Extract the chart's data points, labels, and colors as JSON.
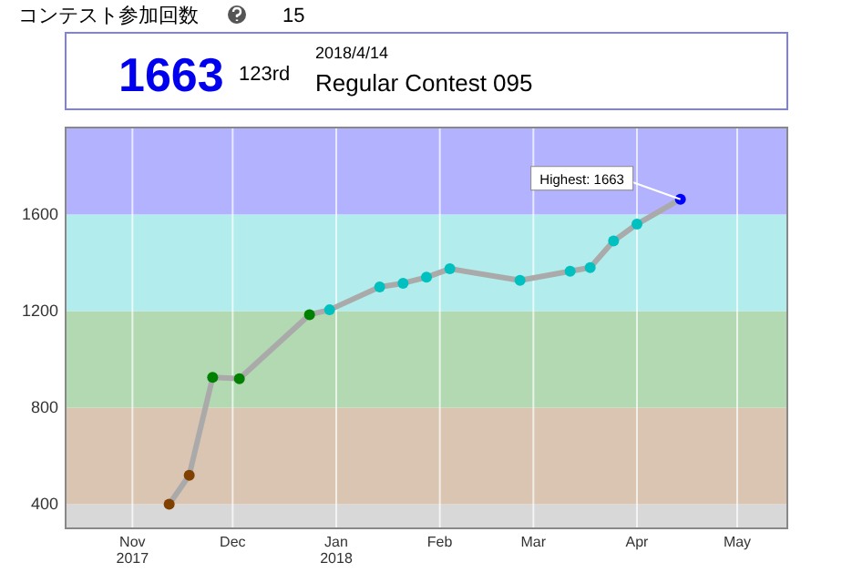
{
  "chart_data": {
    "type": "line",
    "annotations": [
      "コンテスト参加回数",
      "15",
      "1663",
      "123rd",
      "2018/4/14",
      "Regular Contest 095",
      {
        "text": "Highest: 1663",
        "x": "2018-04-14",
        "y": 1663
      }
    ],
    "x": [
      "2017-11-12",
      "2017-11-18",
      "2017-11-25",
      "2017-12-03",
      "2017-12-24",
      "2017-12-30",
      "2018-01-14",
      "2018-01-21",
      "2018-01-28",
      "2018-02-04",
      "2018-02-25",
      "2018-03-12",
      "2018-03-18",
      "2018-03-25",
      "2018-04-01",
      "2018-04-14"
    ],
    "series": [
      {
        "color": "#aaaaaa",
        "values": [
          400,
          520,
          925,
          920,
          1185,
          1205,
          1300,
          1315,
          1340,
          1375,
          1327,
          1365,
          1380,
          1490,
          1560,
          1663
        ],
        "colors": [
          "#804000",
          "#804000",
          "#008000",
          "#008000",
          "#008000",
          "#00c0c0",
          "#00c0c0",
          "#00c0c0",
          "#00c0c0",
          "#00c0c0",
          "#00c0c0",
          "#00c0c0",
          "#00c0c0",
          "#00c0c0",
          "#00c0c0",
          "#0000ff"
        ]
      }
    ],
    "xlim": [
      "2017-10-12",
      "2018-05-16"
    ],
    "xticks": [
      {
        "value": "2017-11-01",
        "label": "Nov 2017"
      },
      {
        "value": "2017-12-01",
        "label": "Dec"
      },
      {
        "value": "2018-01-01",
        "label": "Jan 2018"
      },
      {
        "value": "2018-02-01",
        "label": "Feb"
      },
      {
        "value": "2018-03-01",
        "label": "Mar"
      },
      {
        "value": "2018-04-01",
        "label": "Apr"
      },
      {
        "value": "2018-05-01",
        "label": "May"
      }
    ],
    "ylim": [
      300,
      1960
    ],
    "yticks": [
      400,
      800,
      1200,
      1600
    ],
    "bands": [
      {
        "axis": "y",
        "from": 300,
        "to": 400,
        "color": "#d8d8d8"
      },
      {
        "axis": "y",
        "from": 400,
        "to": 800,
        "color": "#d9c5b2"
      },
      {
        "axis": "y",
        "from": 800,
        "to": 1200,
        "color": "#b2d9b2"
      },
      {
        "axis": "y",
        "from": 1200,
        "to": 1600,
        "color": "#b2ecec"
      },
      {
        "axis": "y",
        "from": 1600,
        "to": 1960,
        "color": "#b2b2ff"
      }
    ],
    "grid": "x",
    "marker": "circle",
    "line_style": "solid"
  }
}
